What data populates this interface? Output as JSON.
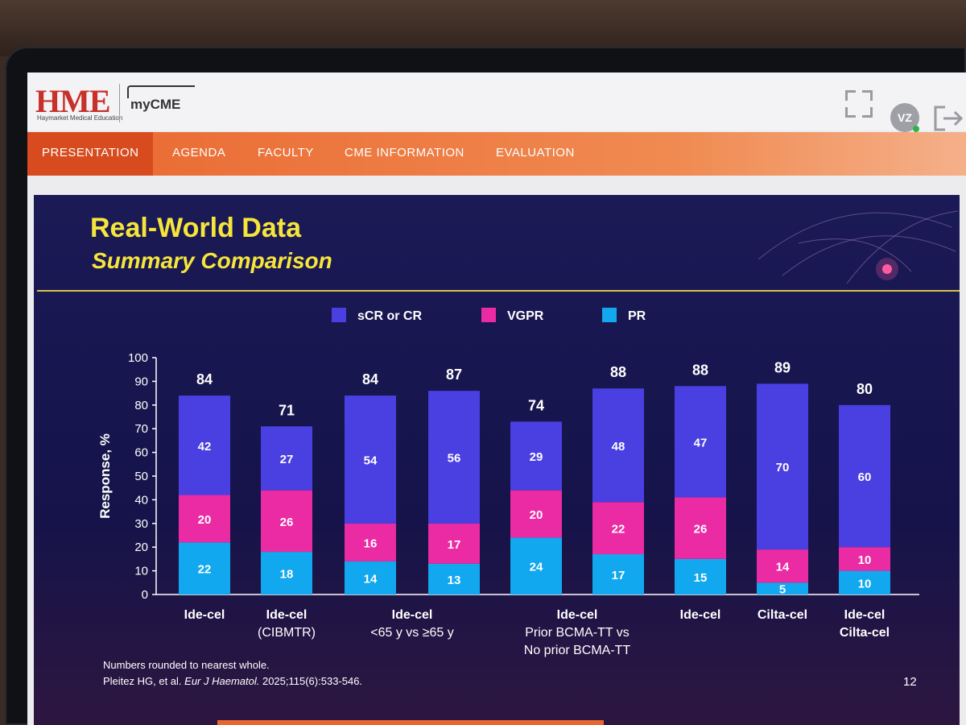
{
  "header": {
    "logo_text": "HME",
    "logo_subtitle": "Haymarket Medical Education",
    "product": "myCME",
    "avatar_initials": "VZ"
  },
  "nav": {
    "items": [
      {
        "label": "PRESENTATION",
        "active": true
      },
      {
        "label": "AGENDA",
        "active": false
      },
      {
        "label": "FACULTY",
        "active": false
      },
      {
        "label": "CME INFORMATION",
        "active": false
      },
      {
        "label": "EVALUATION",
        "active": false
      }
    ]
  },
  "slide": {
    "title": "Real-World Data",
    "subtitle": "Summary Comparison",
    "footnote_line1": "Numbers rounded to nearest whole.",
    "citation_authors": "Pleitez HG, et al. ",
    "citation_journal": "Eur J Haematol.",
    "citation_rest": " 2025;115(6):533-546.",
    "page_number": "12"
  },
  "colors": {
    "scr_cr": "#4a3fe0",
    "vgpr": "#ea2ba3",
    "pr": "#12a8ef",
    "title": "#f6e53a",
    "nav": "#e9672f"
  },
  "chart_data": {
    "type": "bar",
    "stacked": true,
    "ylabel": "Response, %",
    "ylim": [
      0,
      100
    ],
    "yticks": [
      0,
      10,
      20,
      30,
      40,
      50,
      60,
      70,
      80,
      90,
      100
    ],
    "legend_position": "top",
    "series": [
      {
        "name": "sCR or CR",
        "values": [
          42,
          27,
          54,
          56,
          29,
          48,
          47,
          70,
          60
        ]
      },
      {
        "name": "VGPR",
        "values": [
          20,
          26,
          16,
          17,
          20,
          22,
          26,
          14,
          10
        ]
      },
      {
        "name": "PR",
        "values": [
          22,
          18,
          14,
          13,
          24,
          17,
          15,
          5,
          10
        ]
      }
    ],
    "totals": [
      84,
      71,
      84,
      87,
      74,
      88,
      88,
      89,
      80
    ],
    "groups": [
      {
        "label": [
          "Ide-cel"
        ],
        "bars": [
          0
        ]
      },
      {
        "label": [
          "Ide-cel",
          "(CIBMTR)"
        ],
        "bars": [
          1
        ]
      },
      {
        "label": [
          "Ide-cel",
          "<65 y vs ≥65 y"
        ],
        "bars": [
          2,
          3
        ]
      },
      {
        "label": [
          "Ide-cel",
          "Prior BCMA-TT vs",
          "No prior BCMA-TT"
        ],
        "bars": [
          4,
          5
        ]
      },
      {
        "label": [
          "Ide-cel"
        ],
        "bars": [
          6
        ]
      },
      {
        "label": [
          "Cilta-cel"
        ],
        "bars": [
          7
        ]
      },
      {
        "label": [
          "Ide-cel",
          "Cilta-cel"
        ],
        "bars": [
          8
        ]
      }
    ]
  }
}
